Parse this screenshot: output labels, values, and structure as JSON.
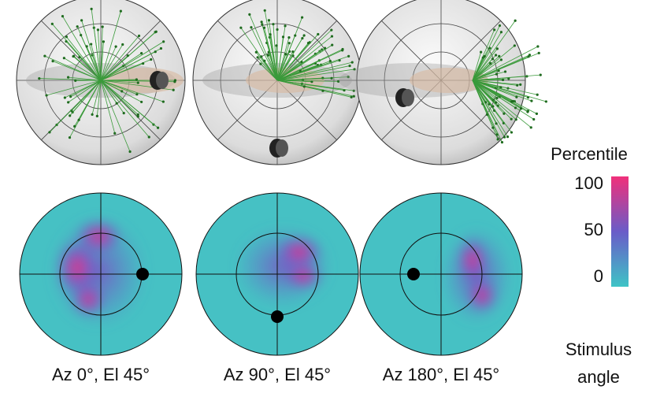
{
  "panels": [
    {
      "label": "Az 0°, El 45°"
    },
    {
      "label": "Az 90°, El 45°"
    },
    {
      "label": "Az 180°, El 45°"
    }
  ],
  "colorbar": {
    "title": "Percentile",
    "ticks": [
      100,
      50,
      0
    ]
  },
  "side_label": {
    "line1": "Stimulus",
    "line2": "angle"
  }
}
